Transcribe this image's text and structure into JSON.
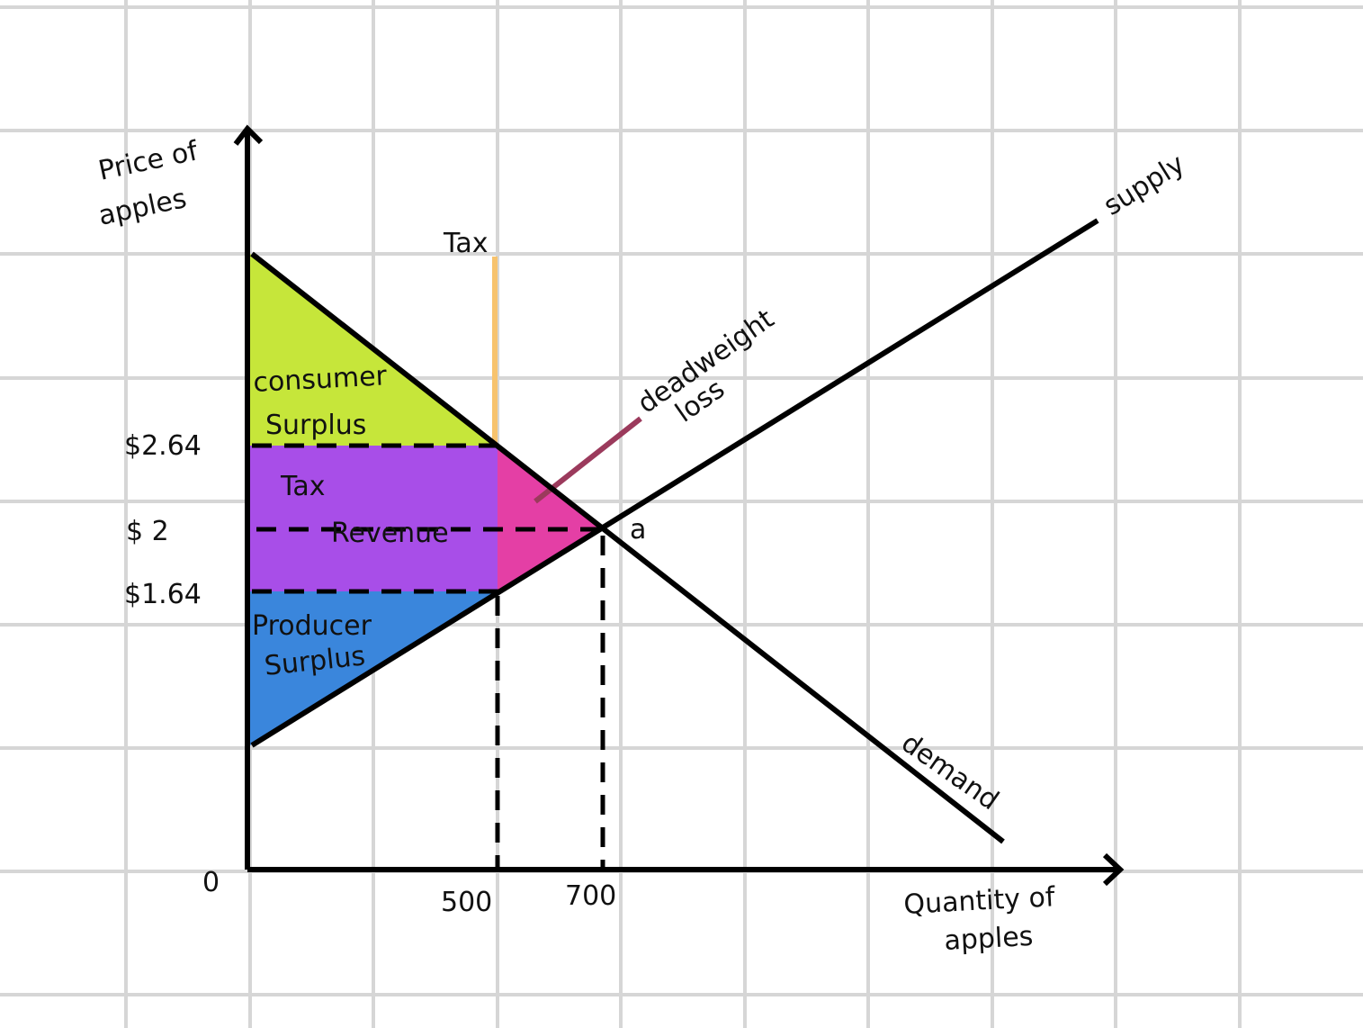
{
  "axes": {
    "y_label": [
      "Price of",
      "apples"
    ],
    "x_label": [
      "Quantity of",
      "apples"
    ],
    "origin": "0"
  },
  "price_labels": [
    "$2.64",
    "$ 2",
    "$1.64"
  ],
  "quantity_labels": [
    "500",
    "700"
  ],
  "regions": {
    "consumer_surplus": [
      "consumer",
      "Surplus"
    ],
    "tax_revenue": [
      "Tax",
      "Revenue"
    ],
    "producer_surplus": [
      "Producer",
      "Surplus"
    ],
    "deadweight_loss": [
      "deadweight",
      "loss"
    ]
  },
  "curves": {
    "supply": "supply",
    "demand": "demand",
    "tax": "Tax"
  },
  "point": "a"
}
